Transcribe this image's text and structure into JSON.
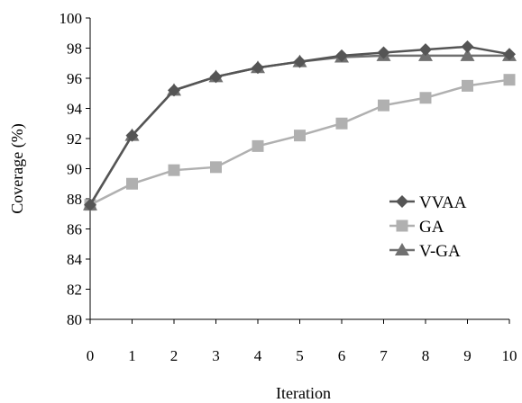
{
  "chart_data": {
    "type": "line",
    "title": "",
    "xlabel": "Iteration",
    "ylabel": "Coverage (%)",
    "x": [
      0,
      1,
      2,
      3,
      4,
      5,
      6,
      7,
      8,
      9,
      10
    ],
    "xlim": [
      0,
      10
    ],
    "ylim": [
      80,
      100
    ],
    "xticks": [
      0,
      1,
      2,
      3,
      4,
      5,
      6,
      7,
      8,
      9,
      10
    ],
    "yticks": [
      80,
      82,
      84,
      86,
      88,
      90,
      92,
      94,
      96,
      98,
      100
    ],
    "grid": false,
    "legend_position": "right",
    "series": [
      {
        "name": "VVAA",
        "marker": "diamond",
        "color": "#555555",
        "values": [
          87.6,
          92.2,
          95.2,
          96.1,
          96.7,
          97.1,
          97.5,
          97.7,
          97.9,
          98.1,
          97.6
        ]
      },
      {
        "name": "GA",
        "marker": "square",
        "color": "#b0b0b0",
        "values": [
          87.6,
          89.0,
          89.9,
          90.1,
          91.5,
          92.2,
          93.0,
          94.2,
          94.7,
          95.5,
          95.9
        ]
      },
      {
        "name": "V-GA",
        "marker": "triangle",
        "color": "#707070",
        "values": [
          87.6,
          92.2,
          95.2,
          96.1,
          96.7,
          97.1,
          97.4,
          97.5,
          97.5,
          97.5,
          97.5
        ]
      }
    ]
  }
}
